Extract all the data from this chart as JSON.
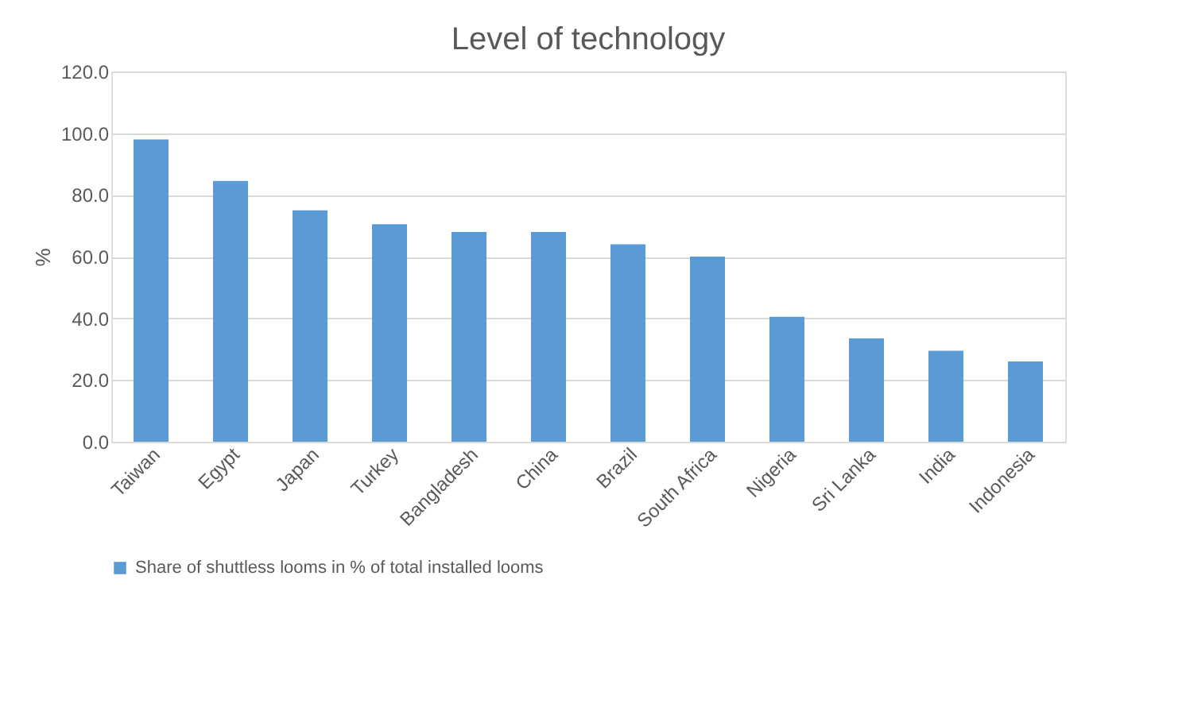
{
  "chart_data": {
    "type": "bar",
    "title": "Level of technology",
    "ylabel": "%",
    "categories": [
      "Taiwan",
      "Egypt",
      "Japan",
      "Turkey",
      "Bangladesh",
      "China",
      "Brazil",
      "South Africa",
      "Nigeria",
      "Sri Lanka",
      "India",
      "Indonesia"
    ],
    "series": [
      {
        "name": "Share of shuttless looms in % of total installed looms",
        "color": "#5b9bd5",
        "values": [
          98,
          84.5,
          75,
          70.5,
          68,
          68,
          64,
          60,
          40.5,
          33.5,
          29.5,
          26
        ]
      }
    ],
    "ylim": [
      0,
      120
    ],
    "yticks": [
      {
        "value": 0,
        "label": "0.0"
      },
      {
        "value": 20,
        "label": "20.0"
      },
      {
        "value": 40,
        "label": "40.0"
      },
      {
        "value": 60,
        "label": "60.0"
      },
      {
        "value": 80,
        "label": "80.0"
      },
      {
        "value": 100,
        "label": "100.0"
      },
      {
        "value": 120,
        "label": "120.0"
      }
    ],
    "grid": "y",
    "legend": "bottom"
  }
}
